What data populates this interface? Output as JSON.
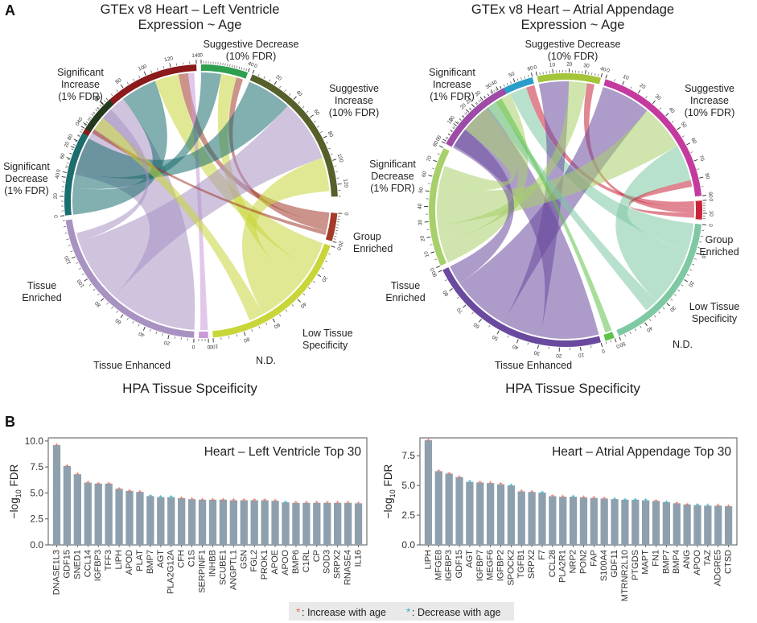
{
  "panel_labels": {
    "a": "A",
    "b": "B"
  },
  "colors": {
    "sig_inc_lv": "#8b1a1a",
    "sug_dec_lv": "#2e9e4f",
    "sug_inc_lv": "#55602a",
    "sig_dec_lv": "#243a1e",
    "group_lv": "#a33a2a",
    "low_lv": "#c9d63a",
    "nd_lv": "#c999d9",
    "enh_lv": "#a892c2",
    "tis_lv": "#1b6e6e",
    "sig_inc_aa": "#2a9ec9",
    "sug_dec_aa": "#a4c43a",
    "sug_inc_aa": "#c43a9e",
    "sig_dec_aa": "#9e4aa6",
    "group_aa": "#c9243a",
    "low_aa": "#7ec9a4",
    "nd_aa": "#5fc24a",
    "enh_aa": "#6a4a9e",
    "tis_aa": "#a8d06a",
    "bar": "#8ea0ad",
    "star_up": "#f26c5c",
    "star_down": "#2fb8c4"
  },
  "chord_lv": {
    "title1": "GTEx v8 Heart – Left Ventricle",
    "title2": "Expression ~ Age",
    "bottom": "HPA Tissue Spceificity",
    "labels": {
      "sig_inc": [
        "Significant",
        "Increase",
        "(1% FDR)"
      ],
      "sug_dec": [
        "Suggestive  Decrease",
        "(10% FDR)"
      ],
      "sug_inc": [
        "Suggestive",
        "Increase",
        "(10% FDR)"
      ],
      "sig_dec": [
        "Significant",
        "Decrease",
        "(1% FDR)"
      ],
      "group": [
        "Group",
        "Enriched"
      ],
      "low": [
        "Low Tissue",
        "Specificity"
      ],
      "nd": [
        "N.D."
      ],
      "enh": [
        "Tissue Enhanced"
      ],
      "tis": [
        "Tissue",
        "Enriched"
      ]
    }
  },
  "chord_aa": {
    "title1": "GTEx v8 Heart – Atrial Appendage",
    "title2": "Expression ~ Age",
    "bottom": "HPA Tissue Specificity",
    "labels": {
      "sig_inc": [
        "Significant",
        "Increase",
        "(1% FDR)"
      ],
      "sug_dec": [
        "Suggestive  Decrease",
        "(10% FDR)"
      ],
      "sug_inc": [
        "Suggestive",
        "Increase",
        "(10% FDR)"
      ],
      "sig_dec": [
        "Significant",
        "Decrease",
        "(1% FDR)"
      ],
      "group": [
        "Group",
        "Enriched"
      ],
      "low": [
        "Low Tissue",
        "Specificity"
      ],
      "nd": [
        "N.D."
      ],
      "enh": [
        "Tissue Enhanced"
      ],
      "tis": [
        "Tissue",
        "Enriched"
      ]
    }
  },
  "chart_data": [
    {
      "type": "chord",
      "title": "GTEx v8 Heart – Left Ventricle Expression ~ Age",
      "xlabel": "HPA Tissue Spceificity",
      "sectors": [
        {
          "key": "sig_inc",
          "max": 140,
          "ticks": [
            0,
            20,
            40,
            60,
            80,
            100,
            120,
            140
          ]
        },
        {
          "key": "sug_dec",
          "max": 40,
          "ticks": [
            0,
            40
          ]
        },
        {
          "key": "sug_inc",
          "max": 130,
          "ticks": [
            0,
            20,
            40,
            60,
            80,
            100,
            120
          ]
        },
        {
          "key": "group",
          "max": 20,
          "ticks": [
            0,
            20
          ]
        },
        {
          "key": "low",
          "max": 100,
          "ticks": [
            0,
            20,
            40,
            60,
            80,
            100
          ]
        },
        {
          "key": "nd",
          "max": 6,
          "ticks": [
            0
          ]
        },
        {
          "key": "enh",
          "max": 150,
          "ticks": [
            0,
            20,
            40,
            60,
            80,
            100,
            120
          ]
        },
        {
          "key": "tis",
          "max": 90,
          "ticks": [
            0,
            20,
            40,
            60,
            80
          ]
        },
        {
          "key": "sig_dec",
          "max": 25,
          "ticks": [
            0,
            20
          ]
        }
      ],
      "links": [
        {
          "from": "sig_inc",
          "to": "enh",
          "value": 75,
          "color": "enh_lv"
        },
        {
          "from": "sig_inc",
          "to": "tis",
          "value": 30,
          "color": "tis_lv"
        },
        {
          "from": "sig_inc",
          "to": "low",
          "value": 20,
          "color": "low_lv"
        },
        {
          "from": "sig_inc",
          "to": "group",
          "value": 8,
          "color": "group_lv"
        },
        {
          "from": "sig_inc",
          "to": "nd",
          "value": 5,
          "color": "nd_lv"
        },
        {
          "from": "sug_dec",
          "to": "tis",
          "value": 18,
          "color": "tis_lv"
        },
        {
          "from": "sug_dec",
          "to": "low",
          "value": 14,
          "color": "low_lv"
        },
        {
          "from": "sug_dec",
          "to": "group",
          "value": 6,
          "color": "group_lv"
        },
        {
          "from": "sug_inc",
          "to": "tis",
          "value": 40,
          "color": "tis_lv"
        },
        {
          "from": "sug_inc",
          "to": "enh",
          "value": 55,
          "color": "enh_lv"
        },
        {
          "from": "sug_inc",
          "to": "low",
          "value": 30,
          "color": "low_lv"
        },
        {
          "from": "sig_dec",
          "to": "group",
          "value": 3,
          "color": "group_lv"
        },
        {
          "from": "sig_dec",
          "to": "low",
          "value": 10,
          "color": "low_lv"
        },
        {
          "from": "sig_dec",
          "to": "enh",
          "value": 8,
          "color": "enh_lv"
        }
      ]
    },
    {
      "type": "chord",
      "title": "GTEx v8 Heart – Atrial Appendage Expression ~ Age",
      "xlabel": "HPA Tissue Specificity",
      "sectors": [
        {
          "key": "sig_inc",
          "max": 60,
          "ticks": [
            0,
            10,
            20,
            30,
            40,
            50,
            60
          ]
        },
        {
          "key": "sug_dec",
          "max": 40,
          "ticks": [
            0,
            10,
            20,
            30,
            40
          ]
        },
        {
          "key": "sug_inc",
          "max": 90,
          "ticks": [
            0,
            10,
            20,
            30,
            40,
            50,
            60,
            70,
            80,
            90
          ]
        },
        {
          "key": "group",
          "max": 15,
          "ticks": [
            0,
            10
          ]
        },
        {
          "key": "low",
          "max": 50,
          "ticks": [
            0,
            10,
            20,
            30,
            40,
            50
          ]
        },
        {
          "key": "nd",
          "max": 4,
          "ticks": [
            0
          ]
        },
        {
          "key": "enh",
          "max": 90,
          "ticks": [
            0,
            10,
            20,
            30,
            40,
            50,
            60,
            70,
            80,
            90
          ]
        },
        {
          "key": "tis",
          "max": 80,
          "ticks": [
            0,
            10,
            20,
            30,
            40,
            50,
            60,
            70,
            80
          ]
        },
        {
          "key": "sig_dec",
          "max": 35,
          "ticks": [
            0,
            10,
            20,
            30
          ]
        }
      ],
      "links": [
        {
          "from": "sig_inc",
          "to": "enh",
          "value": 30,
          "color": "enh_aa"
        },
        {
          "from": "sig_inc",
          "to": "tis",
          "value": 15,
          "color": "tis_aa"
        },
        {
          "from": "sig_inc",
          "to": "low",
          "value": 10,
          "color": "low_aa"
        },
        {
          "from": "sig_inc",
          "to": "group",
          "value": 5,
          "color": "group_aa"
        },
        {
          "from": "sug_dec",
          "to": "enh",
          "value": 20,
          "color": "enh_aa"
        },
        {
          "from": "sug_dec",
          "to": "tis",
          "value": 12,
          "color": "tis_aa"
        },
        {
          "from": "sug_dec",
          "to": "group",
          "value": 5,
          "color": "group_aa"
        },
        {
          "from": "sug_inc",
          "to": "enh",
          "value": 30,
          "color": "enh_aa"
        },
        {
          "from": "sug_inc",
          "to": "tis",
          "value": 28,
          "color": "tis_aa"
        },
        {
          "from": "sug_inc",
          "to": "low",
          "value": 22,
          "color": "low_aa"
        },
        {
          "from": "sug_inc",
          "to": "group",
          "value": 4,
          "color": "group_aa"
        },
        {
          "from": "sig_dec",
          "to": "enh",
          "value": 10,
          "color": "enh_aa"
        },
        {
          "from": "sig_dec",
          "to": "tis",
          "value": 14,
          "color": "tis_aa"
        },
        {
          "from": "sig_dec",
          "to": "low",
          "value": 5,
          "color": "low_aa"
        },
        {
          "from": "sig_dec",
          "to": "nd",
          "value": 3,
          "color": "nd_aa"
        }
      ]
    },
    {
      "type": "bar",
      "title": "Heart – Left Ventricle Top 30",
      "ylabel": "−log10 FDR",
      "ylim": [
        0,
        10.3
      ],
      "yticks": [
        "0.0",
        "2.5",
        "5.0",
        "7.5",
        "10.0"
      ],
      "ytick_values": [
        0,
        2.5,
        5,
        7.5,
        10
      ],
      "categories": [
        "DNASE1L3",
        "GDF15",
        "SNED1",
        "CCL14",
        "IGFBP3",
        "TFF3",
        "LIPH",
        "APOD",
        "PLAT",
        "BMP7",
        "AGT",
        "PLA2G12A",
        "CFH",
        "C1S",
        "SERPINF1",
        "INHBB",
        "SCUBE1",
        "ANGPTL1",
        "GSN",
        "FGL2",
        "PROK1",
        "APOE",
        "APOO",
        "BMP6",
        "C1RL",
        "CP",
        "SOD3",
        "SRPX2",
        "RNASE4",
        "IL16"
      ],
      "values": [
        9.6,
        7.6,
        6.8,
        6.0,
        5.9,
        5.9,
        5.4,
        5.2,
        5.1,
        4.7,
        4.6,
        4.6,
        4.5,
        4.4,
        4.35,
        4.35,
        4.35,
        4.3,
        4.3,
        4.3,
        4.3,
        4.25,
        4.1,
        4.05,
        4.05,
        4.05,
        4.05,
        4.05,
        4.05,
        4.0
      ],
      "direction": [
        "up",
        "up",
        "up",
        "up",
        "up",
        "up",
        "up",
        "up",
        "up",
        "down",
        "down",
        "down",
        "up",
        "up",
        "up",
        "up",
        "up",
        "up",
        "up",
        "up",
        "up",
        "up",
        "down",
        "up",
        "up",
        "up",
        "up",
        "up",
        "up",
        "up"
      ]
    },
    {
      "type": "bar",
      "title": "Heart – Atrial Appendage Top 30",
      "ylabel": "−log10 FDR",
      "ylim": [
        0,
        9.0
      ],
      "yticks": [
        "0.0",
        "2.5",
        "5.0",
        "7.5"
      ],
      "ytick_values": [
        0,
        2.5,
        5,
        7.5
      ],
      "categories": [
        "LIPH",
        "MFGE8",
        "IGFBP3",
        "GDF15",
        "AGT",
        "IGFBP7",
        "MEGF6",
        "IGFBP2",
        "SPOCK2",
        "TGFB1",
        "SRPX2",
        "F7",
        "CCL28",
        "PLA2R1",
        "NRP2",
        "PON2",
        "FAP",
        "S100A4",
        "GDF11",
        "MTRNR2L10",
        "PTGDS",
        "MAPT",
        "FN1",
        "BMP7",
        "BMP4",
        "ANG",
        "APOO",
        "TAZ",
        "ADGRE5",
        "CTSD"
      ],
      "values": [
        8.8,
        6.2,
        6.0,
        5.7,
        5.3,
        5.25,
        5.2,
        5.1,
        5.0,
        4.5,
        4.45,
        4.4,
        4.1,
        4.05,
        4.05,
        4.0,
        3.95,
        3.9,
        3.85,
        3.8,
        3.8,
        3.75,
        3.7,
        3.6,
        3.5,
        3.4,
        3.35,
        3.3,
        3.3,
        3.25
      ],
      "direction": [
        "up",
        "up",
        "up",
        "up",
        "down",
        "up",
        "up",
        "up",
        "down",
        "up",
        "up",
        "down",
        "up",
        "up",
        "down",
        "up",
        "up",
        "up",
        "down",
        "down",
        "down",
        "down",
        "up",
        "down",
        "up",
        "up",
        "down",
        "down",
        "up",
        "up"
      ]
    }
  ],
  "legend": {
    "star": "*",
    "up_text": ": Increase with age",
    "down_text": ": Decrease with age"
  }
}
